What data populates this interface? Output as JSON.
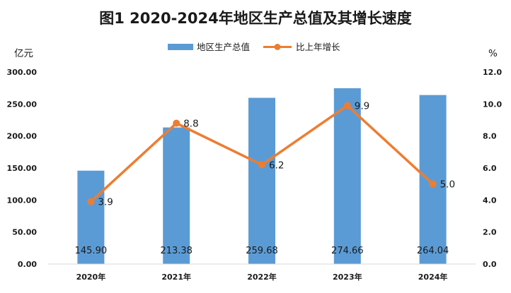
{
  "chart_data": {
    "type": "bar",
    "title": "图1  2020-2024年地区生产总值及其增长速度",
    "categories": [
      "2020年",
      "2021年",
      "2022年",
      "2023年",
      "2024年"
    ],
    "series": [
      {
        "name": "地区生产总值",
        "type": "bar",
        "axis": "left",
        "values": [
          145.9,
          213.38,
          259.68,
          274.66,
          264.04
        ],
        "labels": [
          "145.90",
          "213.38",
          "259.68",
          "274.66",
          "264.04"
        ],
        "color": "#5B9BD5"
      },
      {
        "name": "比上年增长",
        "type": "line",
        "axis": "right",
        "values": [
          3.9,
          8.8,
          6.2,
          9.9,
          5.0
        ],
        "labels": [
          "3.9",
          "8.8",
          "6.2",
          "9.9",
          "5.0"
        ],
        "color": "#ED7D31"
      }
    ],
    "y_left": {
      "unit": "亿元",
      "ylim": [
        0,
        300
      ],
      "ticks": [
        "0.00",
        "50.00",
        "100.00",
        "150.00",
        "200.00",
        "250.00",
        "300.00"
      ]
    },
    "y_right": {
      "unit": "%",
      "ylim": [
        0,
        12
      ],
      "ticks": [
        "0.0",
        "2.0",
        "4.0",
        "6.0",
        "8.0",
        "10.0",
        "12.0"
      ]
    },
    "grid": false,
    "legend": "top-center"
  }
}
